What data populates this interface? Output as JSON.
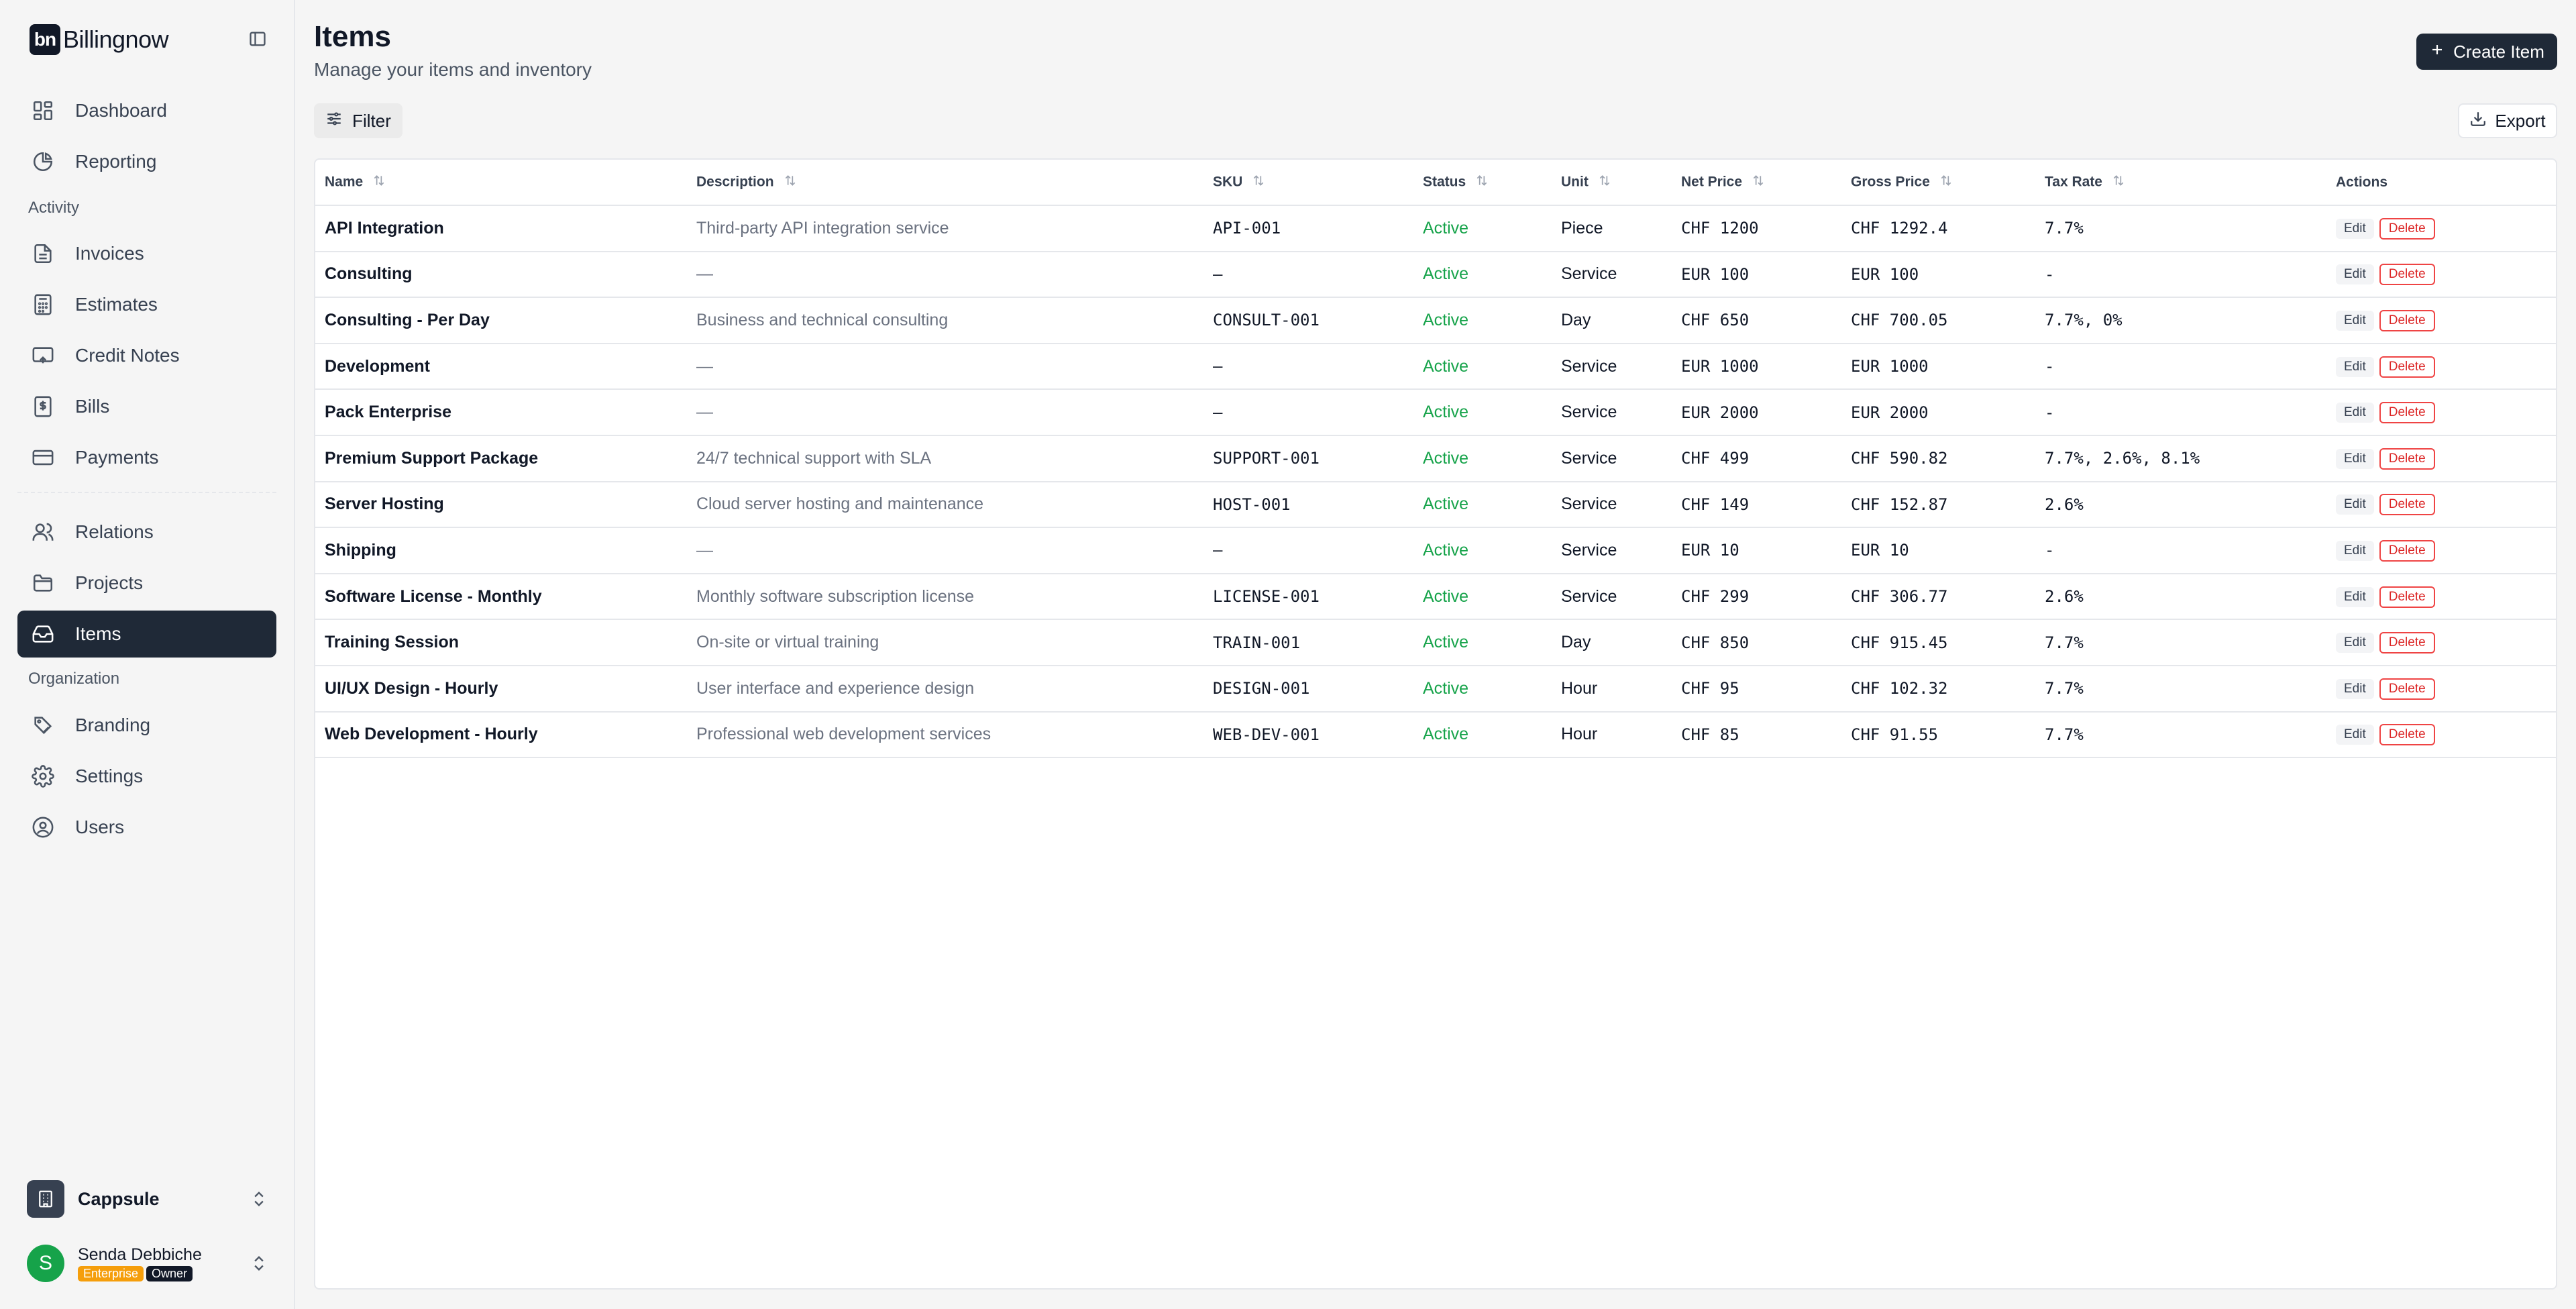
{
  "app": {
    "brand_mark": "bn",
    "brand_name": "Billingnow"
  },
  "sidebar": {
    "items": [
      {
        "label": "Dashboard",
        "icon": "dashboard-icon"
      },
      {
        "label": "Reporting",
        "icon": "pie-chart-icon"
      },
      {
        "label": "Invoices",
        "icon": "file-text-icon"
      },
      {
        "label": "Estimates",
        "icon": "calculator-icon"
      },
      {
        "label": "Credit Notes",
        "icon": "receipt-icon"
      },
      {
        "label": "Bills",
        "icon": "dollar-file-icon"
      },
      {
        "label": "Payments",
        "icon": "credit-card-icon"
      },
      {
        "label": "Relations",
        "icon": "users-icon"
      },
      {
        "label": "Projects",
        "icon": "folder-icon"
      },
      {
        "label": "Items",
        "icon": "inbox-icon"
      },
      {
        "label": "Branding",
        "icon": "palette-icon"
      },
      {
        "label": "Settings",
        "icon": "gear-icon"
      },
      {
        "label": "Users",
        "icon": "user-circle-icon"
      }
    ],
    "sections": {
      "activity": "Activity",
      "organization": "Organization"
    },
    "active_item": "Items",
    "org": {
      "name": "Cappsule"
    },
    "user": {
      "initial": "S",
      "name": "Senda Debbiche",
      "badge_plan": "Enterprise",
      "badge_role": "Owner"
    }
  },
  "header": {
    "title": "Items",
    "subtitle": "Manage your items and inventory",
    "create_label": "Create Item",
    "filter_label": "Filter",
    "export_label": "Export"
  },
  "table": {
    "columns": [
      "Name",
      "Description",
      "SKU",
      "Status",
      "Unit",
      "Net Price",
      "Gross Price",
      "Tax Rate",
      "Actions"
    ],
    "edit_label": "Edit",
    "delete_label": "Delete",
    "rows": [
      {
        "name": "API Integration",
        "description": "Third-party API integration service",
        "sku": "API-001",
        "status": "Active",
        "unit": "Piece",
        "net": "CHF 1200",
        "gross": "CHF 1292.4",
        "tax": "7.7%"
      },
      {
        "name": "Consulting",
        "description": "—",
        "sku": "—",
        "status": "Active",
        "unit": "Service",
        "net": "EUR 100",
        "gross": "EUR 100",
        "tax": "-"
      },
      {
        "name": "Consulting - Per Day",
        "description": "Business and technical consulting",
        "sku": "CONSULT-001",
        "status": "Active",
        "unit": "Day",
        "net": "CHF 650",
        "gross": "CHF 700.05",
        "tax": "7.7%, 0%"
      },
      {
        "name": "Development",
        "description": "—",
        "sku": "—",
        "status": "Active",
        "unit": "Service",
        "net": "EUR 1000",
        "gross": "EUR 1000",
        "tax": "-"
      },
      {
        "name": "Pack Enterprise",
        "description": "—",
        "sku": "—",
        "status": "Active",
        "unit": "Service",
        "net": "EUR 2000",
        "gross": "EUR 2000",
        "tax": "-"
      },
      {
        "name": "Premium Support Package",
        "description": "24/7 technical support with SLA",
        "sku": "SUPPORT-001",
        "status": "Active",
        "unit": "Service",
        "net": "CHF 499",
        "gross": "CHF 590.82",
        "tax": "7.7%, 2.6%, 8.1%"
      },
      {
        "name": "Server Hosting",
        "description": "Cloud server hosting and maintenance",
        "sku": "HOST-001",
        "status": "Active",
        "unit": "Service",
        "net": "CHF 149",
        "gross": "CHF 152.87",
        "tax": "2.6%"
      },
      {
        "name": "Shipping",
        "description": "—",
        "sku": "—",
        "status": "Active",
        "unit": "Service",
        "net": "EUR 10",
        "gross": "EUR 10",
        "tax": "-"
      },
      {
        "name": "Software License - Monthly",
        "description": "Monthly software subscription license",
        "sku": "LICENSE-001",
        "status": "Active",
        "unit": "Service",
        "net": "CHF 299",
        "gross": "CHF 306.77",
        "tax": "2.6%"
      },
      {
        "name": "Training Session",
        "description": "On-site or virtual training",
        "sku": "TRAIN-001",
        "status": "Active",
        "unit": "Day",
        "net": "CHF 850",
        "gross": "CHF 915.45",
        "tax": "7.7%"
      },
      {
        "name": "UI/UX Design - Hourly",
        "description": "User interface and experience design",
        "sku": "DESIGN-001",
        "status": "Active",
        "unit": "Hour",
        "net": "CHF 95",
        "gross": "CHF 102.32",
        "tax": "7.7%"
      },
      {
        "name": "Web Development - Hourly",
        "description": "Professional web development services",
        "sku": "WEB-DEV-001",
        "status": "Active",
        "unit": "Hour",
        "net": "CHF 85",
        "gross": "CHF 91.55",
        "tax": "7.7%"
      }
    ]
  },
  "colors": {
    "accent": "#1f2937",
    "status_active": "#16a34a",
    "danger": "#dc2626",
    "plan_badge": "#f59e0b"
  }
}
